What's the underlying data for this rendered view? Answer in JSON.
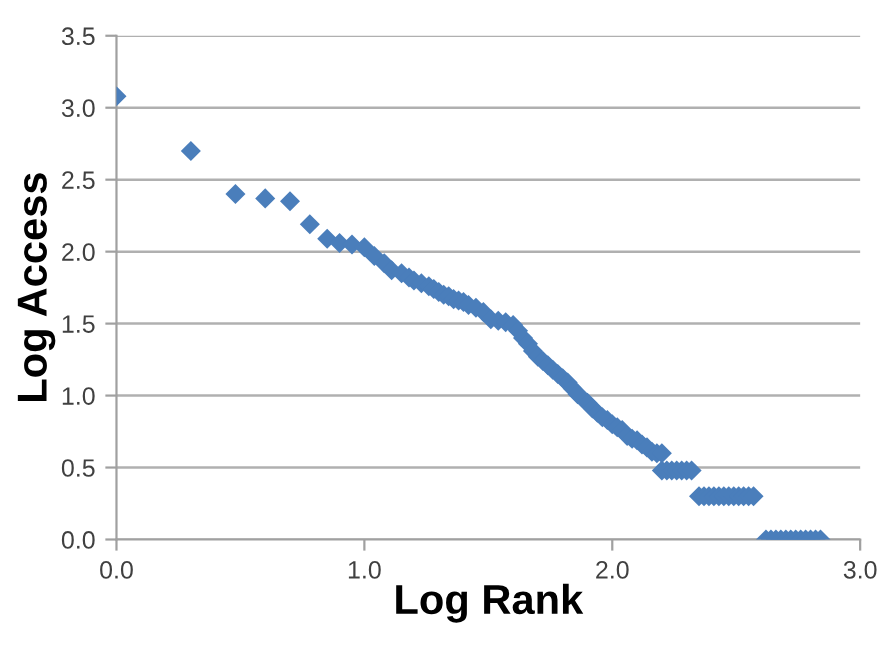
{
  "chart_data": {
    "type": "scatter",
    "xlabel": "Log Rank",
    "ylabel": "Log Access",
    "xlim": [
      0,
      3
    ],
    "xticks": [
      {
        "value": 0,
        "label": "0.0"
      },
      {
        "value": 1,
        "label": "1.0"
      },
      {
        "value": 2,
        "label": "2.0"
      },
      {
        "value": 3,
        "label": "3.0"
      }
    ],
    "ylim": [
      0,
      3.5
    ],
    "yticks": [
      {
        "value": 0,
        "label": "0.0"
      },
      {
        "value": 0.5,
        "label": "0.5"
      },
      {
        "value": 1,
        "label": "1.0"
      },
      {
        "value": 1.5,
        "label": "1.5"
      },
      {
        "value": 2,
        "label": "2.0"
      },
      {
        "value": 2.5,
        "label": "2.5"
      },
      {
        "value": 3,
        "label": "3.0"
      },
      {
        "value": 3.5,
        "label": "3.5"
      }
    ],
    "grid": "y",
    "marker": "diamond",
    "legend": false,
    "series": [
      {
        "color": "#4a7ebb",
        "x": [
          0,
          0.3,
          0.48,
          0.6,
          0.7,
          0.78,
          0.85,
          0.9,
          0.95,
          1.0,
          1.04,
          1.08,
          1.11,
          1.15,
          1.18,
          1.2,
          1.23,
          1.26,
          1.28,
          1.3,
          1.32,
          1.34,
          1.36,
          1.38,
          1.4,
          1.42,
          1.45,
          1.48,
          1.51,
          1.54,
          1.57,
          1.6,
          1.62,
          1.64,
          1.66,
          1.68,
          1.7,
          1.72,
          1.74,
          1.76,
          1.78,
          1.8,
          1.82,
          1.84,
          1.86,
          1.88,
          1.9,
          1.92,
          1.94,
          1.96,
          1.98,
          2.0,
          2.02,
          2.04,
          2.06,
          2.08,
          2.1,
          2.12,
          2.14,
          2.16,
          2.18,
          2.2,
          2.2,
          2.22,
          2.24,
          2.26,
          2.28,
          2.3,
          2.32,
          2.35,
          2.37,
          2.39,
          2.41,
          2.43,
          2.45,
          2.47,
          2.49,
          2.51,
          2.53,
          2.55,
          2.57,
          2.62,
          2.64,
          2.66,
          2.68,
          2.7,
          2.72,
          2.74,
          2.76,
          2.78,
          2.8,
          2.82,
          2.84
        ],
        "values": [
          3.08,
          2.7,
          2.4,
          2.37,
          2.35,
          2.19,
          2.09,
          2.06,
          2.05,
          2.03,
          1.97,
          1.92,
          1.87,
          1.85,
          1.82,
          1.8,
          1.78,
          1.76,
          1.74,
          1.72,
          1.7,
          1.69,
          1.67,
          1.66,
          1.65,
          1.63,
          1.61,
          1.58,
          1.53,
          1.52,
          1.51,
          1.49,
          1.45,
          1.4,
          1.36,
          1.31,
          1.27,
          1.24,
          1.21,
          1.18,
          1.15,
          1.12,
          1.09,
          1.05,
          1.01,
          0.98,
          0.95,
          0.91,
          0.88,
          0.85,
          0.83,
          0.8,
          0.78,
          0.76,
          0.72,
          0.7,
          0.69,
          0.66,
          0.64,
          0.61,
          0.6,
          0.6,
          0.48,
          0.48,
          0.48,
          0.48,
          0.48,
          0.48,
          0.48,
          0.3,
          0.3,
          0.3,
          0.3,
          0.3,
          0.3,
          0.3,
          0.3,
          0.3,
          0.3,
          0.3,
          0.3,
          0,
          0,
          0,
          0,
          0,
          0,
          0,
          0,
          0,
          0,
          0,
          0
        ]
      }
    ]
  }
}
